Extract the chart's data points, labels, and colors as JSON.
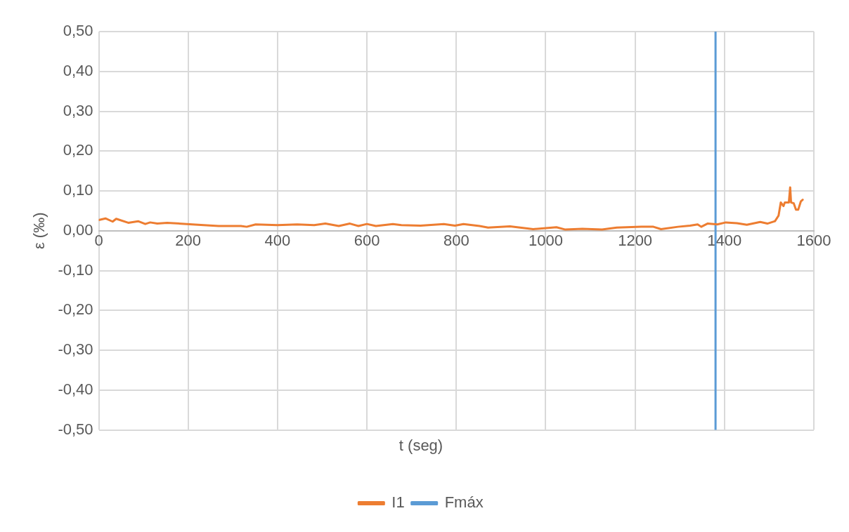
{
  "chart_data": {
    "type": "line",
    "xlabel": "t (seg)",
    "ylabel": "ε (‰)",
    "xlim": [
      0,
      1600
    ],
    "xticks": [
      0,
      200,
      400,
      600,
      800,
      1000,
      1200,
      1400,
      1600
    ],
    "ylim": [
      -0.5,
      0.5
    ],
    "yticks": [
      {
        "value": -0.5,
        "label": "-0,50"
      },
      {
        "value": -0.4,
        "label": "-0,40"
      },
      {
        "value": -0.3,
        "label": "-0,30"
      },
      {
        "value": -0.2,
        "label": "-0,20"
      },
      {
        "value": -0.1,
        "label": "-0,10"
      },
      {
        "value": 0,
        "label": "0,00"
      },
      {
        "value": 0.1,
        "label": "0,10"
      },
      {
        "value": 0.2,
        "label": "0,20"
      },
      {
        "value": 0.3,
        "label": "0,30"
      },
      {
        "value": 0.4,
        "label": "0,40"
      },
      {
        "value": 0.5,
        "label": "0,50"
      }
    ],
    "grid": true,
    "legend": "bottom",
    "marker": "none",
    "line_style": "solid",
    "series": [
      {
        "name": "I1",
        "color": "#ed7d31",
        "x": [
          0,
          15,
          31,
          39,
          66,
          88,
          104,
          115,
          131,
          153,
          197,
          235,
          268,
          318,
          331,
          351,
          400,
          444,
          482,
          507,
          537,
          562,
          581,
          600,
          620,
          658,
          677,
          720,
          772,
          797,
          816,
          852,
          871,
          920,
          972,
          1024,
          1044,
          1082,
          1126,
          1159,
          1214,
          1241,
          1258,
          1296,
          1323,
          1340,
          1348,
          1362,
          1384,
          1403,
          1428,
          1450,
          1480,
          1496,
          1513,
          1521,
          1526,
          1532,
          1535,
          1544,
          1547,
          1549,
          1555,
          1560,
          1565,
          1571,
          1575
        ],
        "values": [
          0.027,
          0.031,
          0.023,
          0.03,
          0.02,
          0.024,
          0.017,
          0.021,
          0.018,
          0.02,
          0.017,
          0.014,
          0.012,
          0.012,
          0.01,
          0.016,
          0.014,
          0.016,
          0.014,
          0.018,
          0.012,
          0.018,
          0.012,
          0.017,
          0.012,
          0.017,
          0.014,
          0.013,
          0.017,
          0.013,
          0.017,
          0.012,
          0.008,
          0.011,
          0.004,
          0.009,
          0.003,
          0.005,
          0.003,
          0.008,
          0.01,
          0.01,
          0.004,
          0.01,
          0.013,
          0.016,
          0.01,
          0.018,
          0.016,
          0.021,
          0.019,
          0.015,
          0.022,
          0.018,
          0.024,
          0.038,
          0.071,
          0.062,
          0.071,
          0.071,
          0.109,
          0.071,
          0.069,
          0.053,
          0.053,
          0.074,
          0.078
        ]
      },
      {
        "name": "Fmáx",
        "color": "#5b9bd5",
        "x": [
          1380,
          1380
        ],
        "values": [
          -0.5,
          0.5
        ]
      }
    ]
  }
}
